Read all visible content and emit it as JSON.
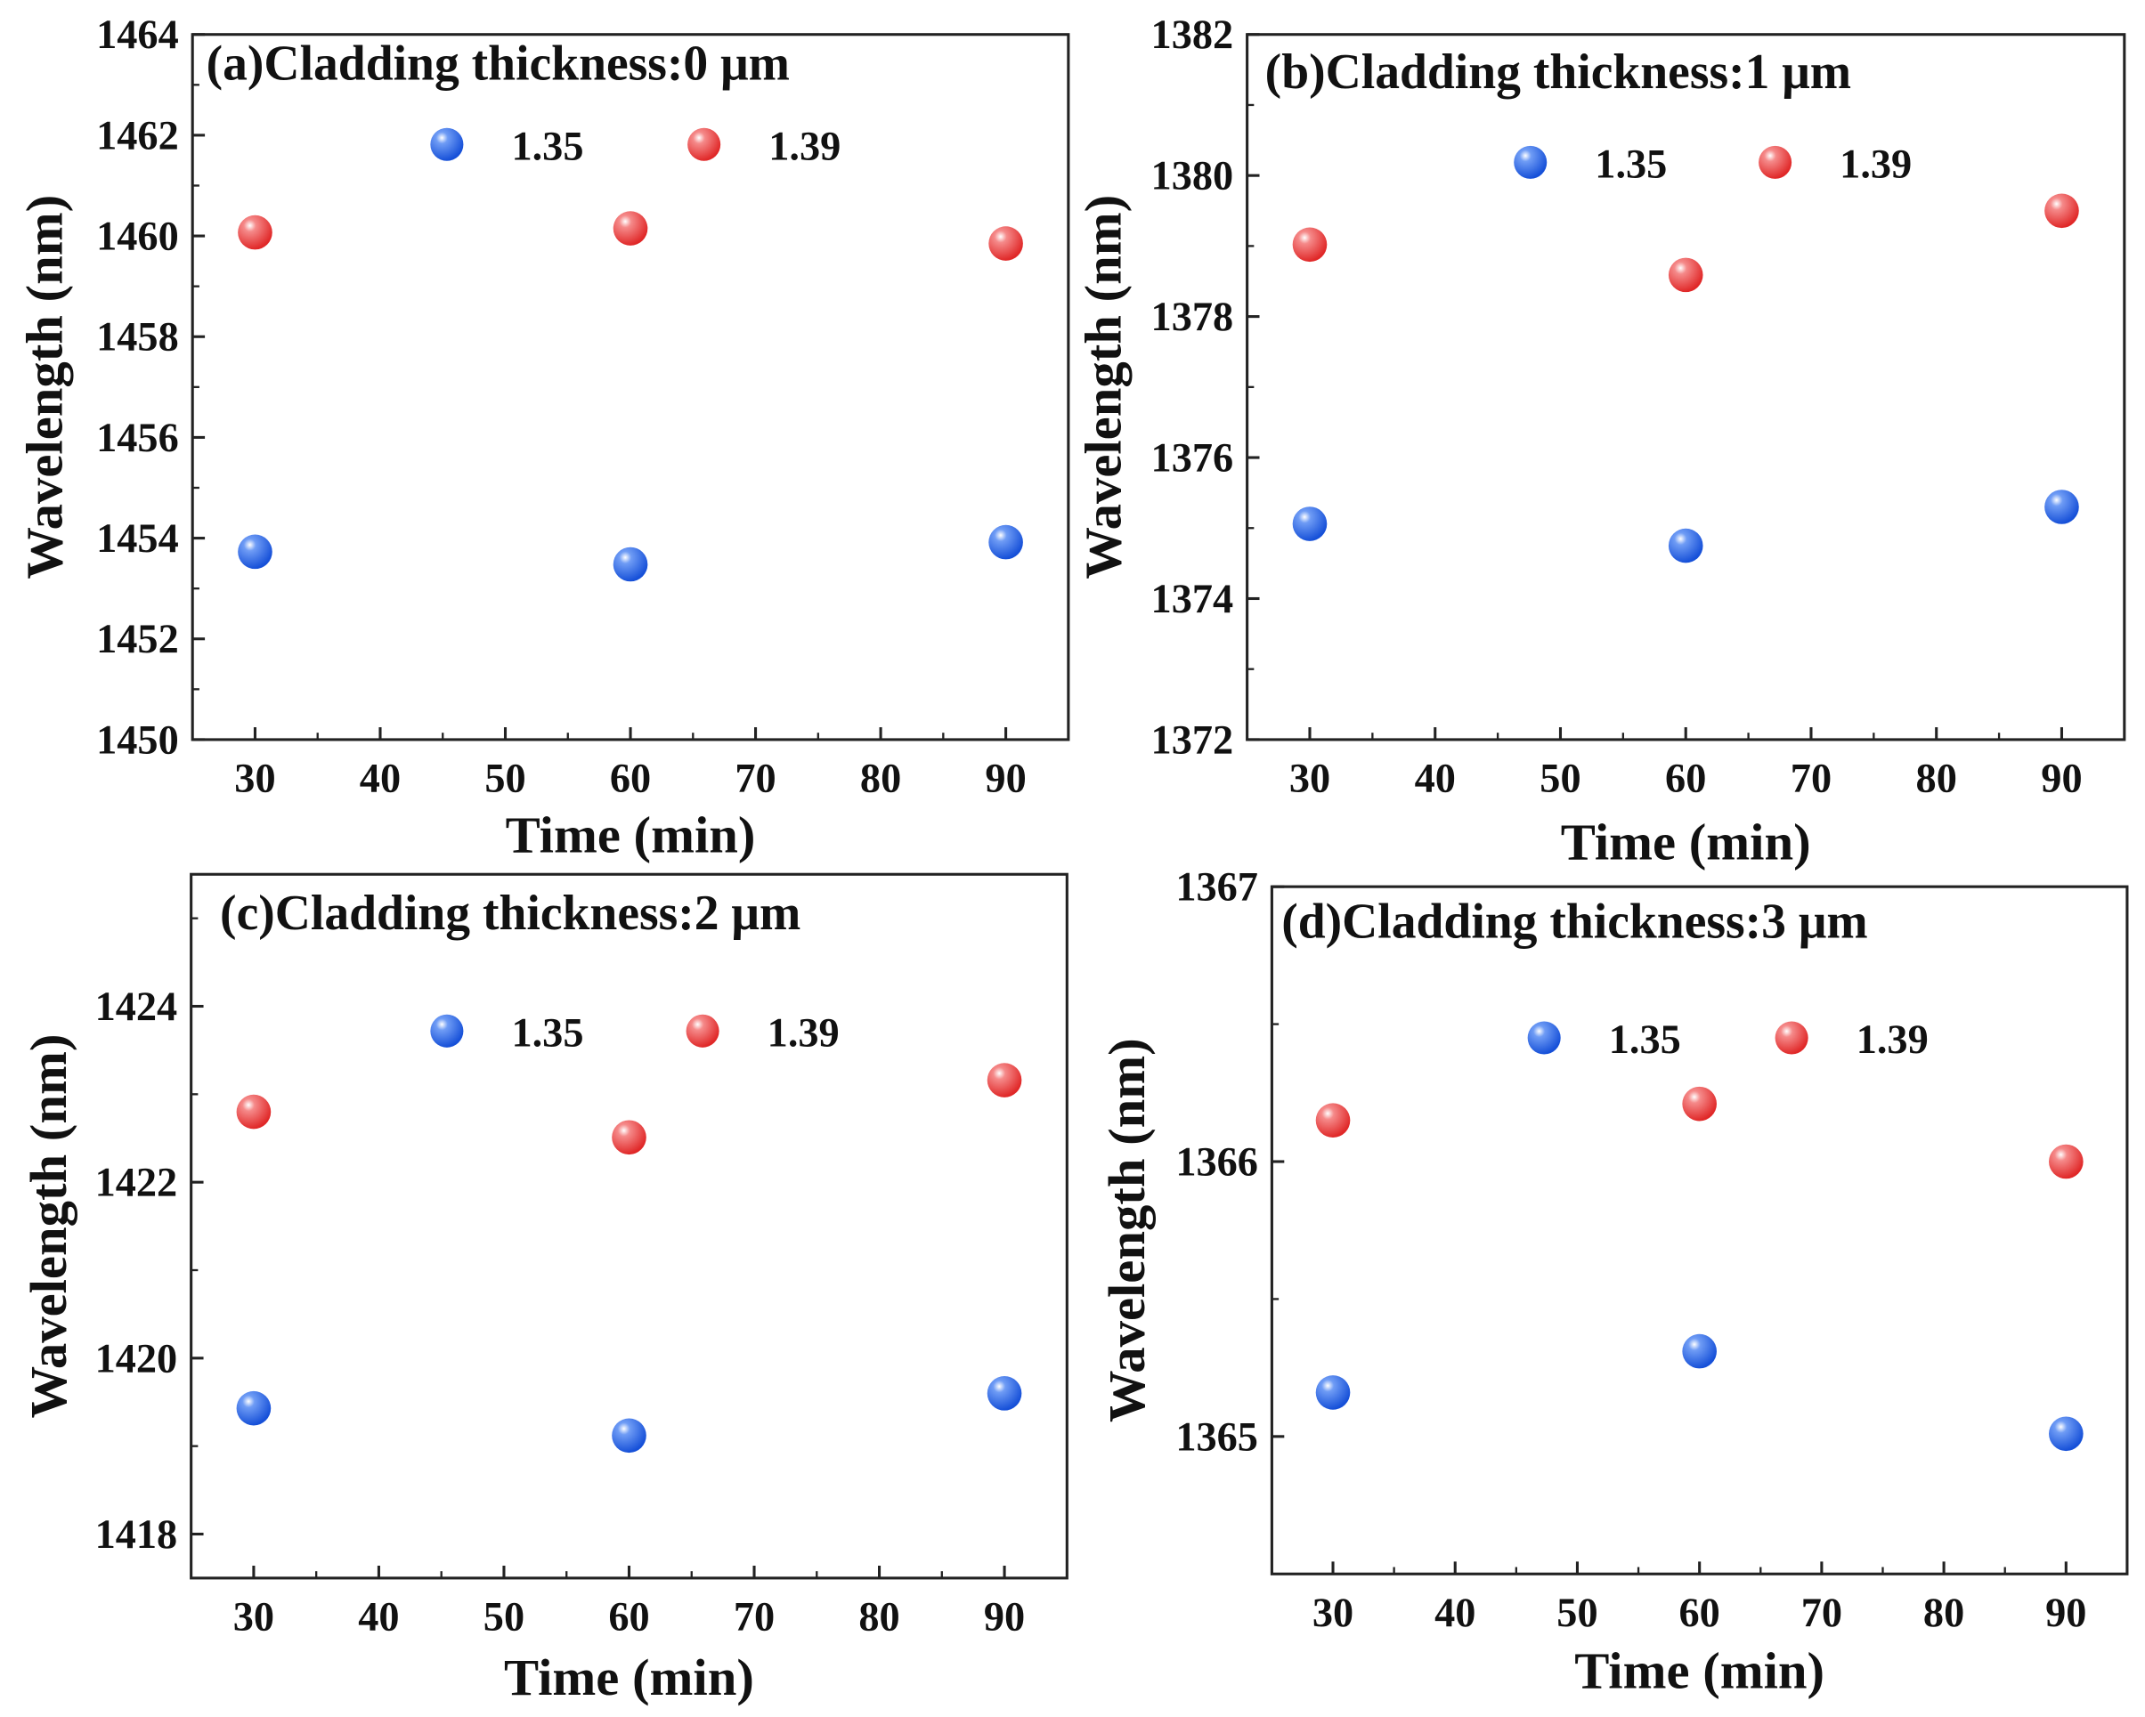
{
  "colors": {
    "series_1_35": "#1f5fe0",
    "series_1_39": "#e83a3a",
    "axis": "#222222"
  },
  "chart_data": [
    {
      "type": "scatter",
      "title": "(a)Cladding thickness:0 μm",
      "xlabel": "Time (min)",
      "ylabel": "Wavelength (nm)",
      "xlim": [
        25,
        95
      ],
      "ylim": [
        1450,
        1464
      ],
      "xticks": [
        30,
        40,
        50,
        60,
        70,
        80,
        90
      ],
      "yticks": [
        1450,
        1452,
        1454,
        1456,
        1458,
        1460,
        1462,
        1464
      ],
      "yminor": 1,
      "legend": "top-center",
      "grid": false,
      "x": [
        30,
        60,
        90
      ],
      "series": [
        {
          "name": "1.35",
          "values": [
            1453.73,
            1453.48,
            1453.92
          ]
        },
        {
          "name": "1.39",
          "values": [
            1460.07,
            1460.15,
            1459.85
          ]
        }
      ]
    },
    {
      "type": "scatter",
      "title": "(b)Cladding thickness:1 μm",
      "xlabel": "Time (min)",
      "ylabel": "Wavelength (nm)",
      "xlim": [
        25,
        95
      ],
      "ylim": [
        1372,
        1382
      ],
      "xticks": [
        30,
        40,
        50,
        60,
        70,
        80,
        90
      ],
      "yticks": [
        1372,
        1374,
        1376,
        1378,
        1380,
        1382
      ],
      "yminor": 1,
      "legend": "top-center",
      "grid": false,
      "x": [
        30,
        60,
        90
      ],
      "series": [
        {
          "name": "1.35",
          "values": [
            1375.06,
            1374.75,
            1375.3
          ]
        },
        {
          "name": "1.39",
          "values": [
            1379.02,
            1378.59,
            1379.5
          ]
        }
      ]
    },
    {
      "type": "scatter",
      "title": "(c)Cladding thickness:2 μm",
      "xlabel": "Time (min)",
      "ylabel": "Wavelength (nm)",
      "xlim": [
        25,
        95
      ],
      "ylim": [
        1417.5,
        1425.5
      ],
      "xticks": [
        30,
        40,
        50,
        60,
        70,
        80,
        90
      ],
      "yticks": [
        1418,
        1420,
        1422,
        1424
      ],
      "yminor": 1,
      "legend": "top-center",
      "grid": false,
      "x": [
        30,
        60,
        90
      ],
      "series": [
        {
          "name": "1.35",
          "values": [
            1419.43,
            1419.12,
            1419.6
          ]
        },
        {
          "name": "1.39",
          "values": [
            1422.8,
            1422.51,
            1423.16
          ]
        }
      ]
    },
    {
      "type": "scatter",
      "title": "(d)Cladding thickness:3 μm",
      "xlabel": "Time (min)",
      "ylabel": "Wavelength (nm)",
      "xlim": [
        25,
        95
      ],
      "ylim": [
        1364.5,
        1367
      ],
      "xticks": [
        30,
        40,
        50,
        60,
        70,
        80,
        90
      ],
      "yticks": [
        1365,
        1366,
        1367
      ],
      "yminor": 0.5,
      "legend": "top-center",
      "grid": false,
      "x": [
        30,
        60,
        90
      ],
      "series": [
        {
          "name": "1.35",
          "values": [
            1365.16,
            1365.31,
            1365.01
          ]
        },
        {
          "name": "1.39",
          "values": [
            1366.15,
            1366.21,
            1366.0
          ]
        }
      ]
    }
  ]
}
